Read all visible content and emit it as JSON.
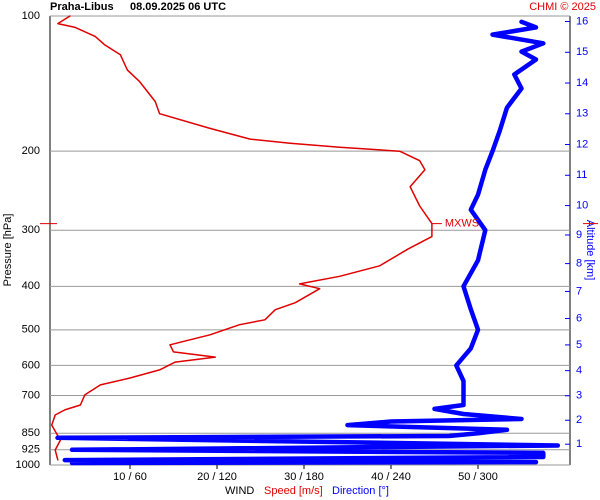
{
  "chart_data": {
    "type": "wind-profile",
    "station": "Praha-Libus",
    "time": "08.09.2025 06 UTC",
    "credit": "CHMI © 2025",
    "ylabel": "Pressure [hPa]",
    "y2label": "Altitude [km]",
    "xlabel": "WIND",
    "ylim": [
      1000,
      100
    ],
    "log_y": true,
    "grid": true,
    "yticks": [
      100,
      200,
      300,
      400,
      500,
      600,
      700,
      850,
      925,
      1000
    ],
    "xlim": [
      0,
      60
    ],
    "x2lim": [
      0,
      360
    ],
    "xticks": [
      {
        "value": 10,
        "label": "10 / 60"
      },
      {
        "value": 20,
        "label": "20 / 120"
      },
      {
        "value": 30,
        "label": "30 / 180"
      },
      {
        "value": 40,
        "label": "40 / 240"
      },
      {
        "value": 50,
        "label": "50 / 300"
      }
    ],
    "y2ticks": [
      1,
      2,
      3,
      4,
      5,
      6,
      7,
      8,
      9,
      10,
      11,
      12,
      13,
      14,
      15,
      16
    ],
    "max_wind": {
      "label": "MXWS",
      "pressure": 290,
      "speed": 44.7
    },
    "series": [
      {
        "name": "Speed [m/s]",
        "color": "#e00000",
        "pressure": [
          974,
          926,
          880,
          815,
          774,
          754,
          735,
          698,
          663,
          640,
          614,
          590,
          575,
          560,
          540,
          513,
          487,
          475,
          451,
          435,
          405,
          395,
          380,
          360,
          330,
          310,
          290,
          265,
          240,
          220,
          210,
          200,
          196,
          192,
          188,
          178,
          165,
          155,
          140,
          132,
          122,
          116,
          111,
          106,
          104,
          100
        ],
        "values": [
          1.7,
          1.4,
          2.0,
          1.0,
          1.4,
          2.5,
          4.3,
          4.8,
          6.6,
          10.0,
          13.4,
          15.2,
          19.8,
          15.0,
          14.6,
          19.2,
          22.6,
          25.5,
          26.7,
          29.0,
          31.8,
          29.5,
          34.1,
          38.7,
          42.0,
          44.7,
          44.7,
          43.3,
          42.2,
          43.9,
          43.3,
          41.0,
          34.1,
          28.4,
          23.8,
          19.2,
          13.4,
          12.9,
          11.1,
          9.7,
          8.9,
          7.1,
          6.0,
          3.7,
          1.7,
          3.1
        ]
      },
      {
        "name": "Direction [°]",
        "color": "#0000ff",
        "axis": "x2",
        "pressure": [
          990,
          985,
          975,
          960,
          940,
          925,
          905,
          870,
          862,
          850,
          835,
          815,
          800,
          790,
          770,
          750,
          735,
          700,
          650,
          600,
          550,
          500,
          450,
          400,
          350,
          300,
          270,
          250,
          220,
          200,
          180,
          160,
          145,
          135,
          125,
          120,
          115,
          110,
          106,
          103
        ],
        "values": [
          20,
          340,
          15,
          345,
          345,
          20,
          355,
          10,
          280,
          300,
          320,
          210,
          240,
          330,
          290,
          270,
          290,
          290,
          290,
          285,
          295,
          300,
          295,
          290,
          300,
          305,
          295,
          300,
          305,
          310,
          315,
          320,
          330,
          325,
          340,
          330,
          345,
          310,
          340,
          330
        ]
      }
    ]
  }
}
